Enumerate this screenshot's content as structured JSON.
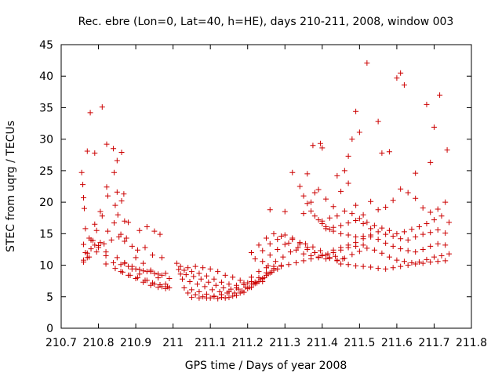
{
  "chart_data": {
    "type": "scatter",
    "title": "Rec. ebre (Lon=0, Lat=40, h=HE), days 210-211, 2008, window 003",
    "xlabel": "GPS time / Days of year 2008",
    "ylabel": "STEC from uqrg / TECUs",
    "xlim": [
      210.7,
      211.8
    ],
    "ylim": [
      0,
      45
    ],
    "xticks": [
      210.7,
      210.8,
      210.9,
      211,
      211.1,
      211.2,
      211.3,
      211.4,
      211.5,
      211.6,
      211.7,
      211.8
    ],
    "xtick_labels": [
      "210.7",
      "210.8",
      "210.9",
      "211",
      "211.1",
      "211.2",
      "211.3",
      "211.4",
      "211.5",
      "211.6",
      "211.7",
      "211.8"
    ],
    "yticks": [
      0,
      5,
      10,
      15,
      20,
      25,
      30,
      35,
      40,
      45
    ],
    "ytick_labels": [
      "0",
      "5",
      "10",
      "15",
      "20",
      "25",
      "30",
      "35",
      "40",
      "45"
    ],
    "marker": "+",
    "color": "#cc0000",
    "grid": false,
    "series": [
      {
        "name": "STEC",
        "x": [
          210.755,
          210.758,
          210.76,
          210.762,
          210.765,
          210.77,
          210.778,
          210.79,
          210.81,
          210.822,
          210.84,
          210.85,
          210.862,
          210.77,
          210.785,
          210.795,
          210.81,
          210.822,
          210.842,
          210.85,
          210.862,
          210.868,
          210.765,
          210.775,
          210.79,
          210.805,
          210.825,
          210.845,
          210.852,
          210.87,
          210.88,
          210.76,
          210.77,
          210.79,
          210.805,
          210.825,
          210.842,
          210.86,
          210.875,
          210.91,
          210.93,
          210.95,
          210.965,
          210.76,
          210.775,
          210.795,
          210.815,
          210.835,
          210.855,
          210.87,
          210.89,
          210.905,
          210.925,
          210.945,
          210.97,
          210.76,
          210.78,
          210.8,
          210.82,
          210.84,
          210.86,
          210.88,
          210.9,
          210.92,
          210.94,
          210.96,
          210.98,
          210.78,
          210.8,
          210.82,
          210.85,
          210.87,
          210.89,
          210.91,
          210.93,
          210.95,
          210.97,
          210.99,
          210.82,
          210.845,
          210.865,
          210.885,
          210.905,
          210.925,
          210.945,
          210.965,
          210.985,
          210.86,
          210.88,
          210.9,
          210.92,
          210.94,
          210.96,
          210.98,
          210.87,
          210.89,
          210.91,
          210.93,
          210.95,
          210.97,
          210.99,
          210.9,
          210.92,
          210.94,
          210.96,
          210.98,
          211.01,
          211.02,
          211.04,
          211.06,
          211.08,
          211.1,
          211.12,
          211.14,
          211.16,
          211.18,
          211.2,
          211.22,
          211.24,
          211.015,
          211.03,
          211.05,
          211.07,
          211.09,
          211.11,
          211.13,
          211.15,
          211.17,
          211.19,
          211.21,
          211.23,
          211.25,
          211.02,
          211.035,
          211.055,
          211.075,
          211.095,
          211.115,
          211.135,
          211.155,
          211.175,
          211.195,
          211.215,
          211.235,
          211.255,
          211.025,
          211.045,
          211.065,
          211.085,
          211.105,
          211.125,
          211.145,
          211.165,
          211.185,
          211.205,
          211.225,
          211.245,
          211.265,
          211.03,
          211.05,
          211.07,
          211.09,
          211.11,
          211.13,
          211.15,
          211.17,
          211.19,
          211.21,
          211.23,
          211.25,
          211.27,
          211.04,
          211.06,
          211.08,
          211.1,
          211.12,
          211.14,
          211.16,
          211.18,
          211.2,
          211.22,
          211.24,
          211.26,
          211.28,
          211.05,
          211.07,
          211.09,
          211.11,
          211.13,
          211.15,
          211.17,
          211.19,
          211.21,
          211.23,
          211.25,
          211.27,
          211.29,
          211.21,
          211.23,
          211.25,
          211.27,
          211.29,
          211.31,
          211.33,
          211.35,
          211.37,
          211.39,
          211.41,
          211.22,
          211.24,
          211.26,
          211.28,
          211.3,
          211.32,
          211.34,
          211.36,
          211.38,
          211.4,
          211.42,
          211.24,
          211.26,
          211.28,
          211.3,
          211.32,
          211.34,
          211.36,
          211.38,
          211.4,
          211.42,
          211.44,
          211.255,
          211.275,
          211.295,
          211.315,
          211.335,
          211.355,
          211.375,
          211.395,
          211.415,
          211.435,
          211.455,
          211.27,
          211.29,
          211.31,
          211.33,
          211.35,
          211.37,
          211.39,
          211.41,
          211.43,
          211.45,
          211.47,
          211.49,
          211.51,
          211.26,
          211.32,
          211.34,
          211.35,
          211.36,
          211.37,
          211.38,
          211.39,
          211.4,
          211.41,
          211.42,
          211.43,
          211.45,
          211.47,
          211.49,
          211.51,
          211.53,
          211.36,
          211.375,
          211.38,
          211.395,
          211.4,
          211.44,
          211.46,
          211.47,
          211.48,
          211.49,
          211.5,
          211.52,
          211.55,
          211.56,
          211.58,
          211.6,
          211.61,
          211.62,
          211.65,
          211.68,
          211.69,
          211.7,
          211.715,
          211.735,
          211.3,
          211.35,
          211.37,
          211.39,
          211.41,
          211.43,
          211.45,
          211.47,
          211.49,
          211.51,
          211.53,
          211.55,
          211.57,
          211.59,
          211.61,
          211.63,
          211.65,
          211.67,
          211.69,
          211.71,
          211.73,
          211.4,
          211.42,
          211.44,
          211.46,
          211.48,
          211.5,
          211.52,
          211.54,
          211.56,
          211.58,
          211.6,
          211.62,
          211.64,
          211.66,
          211.68,
          211.7,
          211.72,
          211.74,
          211.41,
          211.43,
          211.45,
          211.47,
          211.49,
          211.51,
          211.53,
          211.55,
          211.57,
          211.59,
          211.61,
          211.63,
          211.65,
          211.67,
          211.69,
          211.71,
          211.73,
          211.43,
          211.45,
          211.47,
          211.49,
          211.51,
          211.53,
          211.55,
          211.57,
          211.59,
          211.61,
          211.63,
          211.65,
          211.67,
          211.69,
          211.71,
          211.73,
          211.44,
          211.46,
          211.48,
          211.5,
          211.52,
          211.54,
          211.56,
          211.58,
          211.6,
          211.62,
          211.64,
          211.66,
          211.68,
          211.7,
          211.72,
          211.74,
          211.45,
          211.47,
          211.49,
          211.51,
          211.53,
          211.55,
          211.57,
          211.59,
          211.61,
          211.63,
          211.65,
          211.67,
          211.69,
          211.71,
          211.73
        ],
        "y": [
          24.7,
          22.8,
          20.7,
          19.0,
          15.8,
          28.1,
          34.2,
          27.8,
          35.1,
          29.2,
          28.5,
          26.6,
          27.9,
          11.2,
          13.9,
          15.5,
          17.8,
          22.4,
          24.7,
          21.6,
          20.2,
          21.3,
          12.0,
          14.3,
          16.5,
          18.5,
          21.0,
          19.5,
          18.0,
          17.0,
          16.8,
          10.8,
          11.9,
          13.2,
          13.6,
          15.4,
          16.7,
          14.9,
          14.3,
          15.5,
          16.1,
          15.4,
          14.9,
          10.5,
          11.3,
          12.1,
          13.4,
          14.0,
          14.5,
          13.8,
          13.0,
          12.4,
          12.8,
          11.6,
          11.2,
          13.3,
          14.0,
          12.8,
          11.5,
          10.4,
          10.1,
          9.8,
          9.4,
          9.1,
          9.2,
          8.6,
          8.7,
          12.6,
          13.1,
          12.1,
          11.2,
          10.3,
          9.8,
          9.3,
          9.0,
          8.7,
          8.4,
          7.9,
          10.2,
          9.5,
          8.9,
          8.4,
          8.0,
          7.6,
          7.2,
          6.9,
          6.6,
          9.0,
          8.4,
          7.9,
          7.3,
          6.8,
          6.5,
          6.3,
          10.4,
          9.4,
          8.6,
          7.6,
          7.0,
          6.6,
          6.4,
          11.2,
          10.3,
          9.0,
          8.0,
          7.0,
          10.3,
          9.8,
          9.6,
          9.8,
          9.6,
          9.4,
          9.0,
          8.4,
          8.1,
          7.6,
          7.2,
          7.3,
          7.4,
          9.3,
          9.2,
          9.0,
          8.7,
          8.3,
          7.8,
          7.3,
          7.0,
          6.8,
          6.9,
          7.4,
          8.0,
          8.8,
          8.6,
          8.5,
          8.2,
          7.8,
          7.3,
          6.8,
          6.4,
          6.2,
          6.2,
          6.5,
          7.0,
          7.7,
          8.6,
          7.8,
          7.4,
          7.0,
          6.6,
          6.1,
          5.8,
          5.6,
          5.6,
          5.9,
          6.5,
          7.2,
          8.0,
          8.9,
          6.4,
          6.1,
          5.8,
          5.4,
          5.1,
          4.9,
          4.9,
          5.2,
          5.7,
          6.5,
          7.4,
          8.4,
          9.2,
          5.6,
          5.3,
          5.0,
          4.8,
          4.7,
          4.8,
          5.1,
          5.6,
          6.3,
          7.1,
          7.9,
          8.8,
          9.4,
          4.9,
          4.8,
          4.8,
          5.0,
          5.3,
          5.8,
          6.4,
          7.2,
          8.1,
          9.0,
          9.6,
          9.8,
          10.0,
          12.0,
          13.2,
          14.3,
          15.0,
          14.6,
          13.5,
          12.4,
          11.8,
          11.5,
          11.3,
          11.0,
          11.0,
          12.3,
          13.4,
          14.1,
          14.8,
          14.3,
          13.4,
          12.5,
          12.0,
          11.6,
          11.2,
          10.6,
          11.6,
          12.5,
          13.3,
          14.1,
          13.6,
          12.8,
          12.0,
          11.5,
          11.1,
          10.8,
          9.9,
          10.6,
          11.3,
          12.1,
          12.8,
          13.4,
          12.9,
          12.3,
          11.8,
          11.4,
          11.0,
          9.5,
          9.8,
          10.1,
          10.4,
          10.7,
          11.0,
          11.2,
          11.6,
          12.0,
          12.4,
          12.8,
          13.0,
          13.2,
          18.8,
          24.7,
          22.5,
          21.0,
          19.8,
          18.6,
          17.8,
          17.2,
          16.6,
          16.1,
          15.7,
          15.4,
          15.0,
          14.8,
          14.5,
          14.6,
          14.8,
          24.5,
          29.0,
          21.5,
          29.3,
          28.6,
          24.2,
          25.0,
          27.3,
          30.0,
          34.4,
          31.1,
          42.1,
          32.8,
          27.8,
          28.0,
          39.7,
          40.5,
          38.6,
          24.6,
          35.5,
          26.3,
          31.9,
          37.0,
          28.3,
          18.5,
          18.2,
          20.0,
          22.0,
          20.5,
          19.3,
          21.7,
          23.0,
          19.5,
          18.0,
          20.1,
          18.8,
          19.2,
          20.3,
          22.1,
          21.5,
          20.6,
          19.1,
          18.4,
          18.9,
          20.0,
          17.0,
          17.5,
          17.8,
          18.6,
          18.2,
          17.4,
          16.8,
          16.3,
          15.9,
          15.5,
          15.0,
          15.3,
          15.7,
          16.1,
          16.6,
          17.2,
          17.8,
          16.8,
          15.8,
          16.0,
          16.3,
          16.7,
          17.1,
          16.6,
          15.8,
          15.3,
          14.9,
          14.6,
          14.2,
          14.0,
          14.5,
          14.9,
          15.2,
          15.6,
          15.1,
          12.4,
          12.8,
          13.2,
          13.6,
          14.2,
          14.5,
          14.1,
          13.5,
          13.0,
          12.6,
          12.3,
          12.1,
          12.5,
          13.0,
          13.4,
          13.2,
          10.7,
          11.1,
          11.7,
          12.2,
          12.7,
          12.4,
          11.9,
          11.3,
          10.8,
          10.6,
          10.4,
          10.5,
          10.9,
          11.3,
          11.5,
          11.8,
          10.2,
          10.1,
          9.9,
          9.8,
          9.7,
          9.5,
          9.4,
          9.6,
          9.8,
          10.0,
          10.2,
          10.3,
          10.5,
          10.6,
          10.7
        ]
      }
    ]
  }
}
